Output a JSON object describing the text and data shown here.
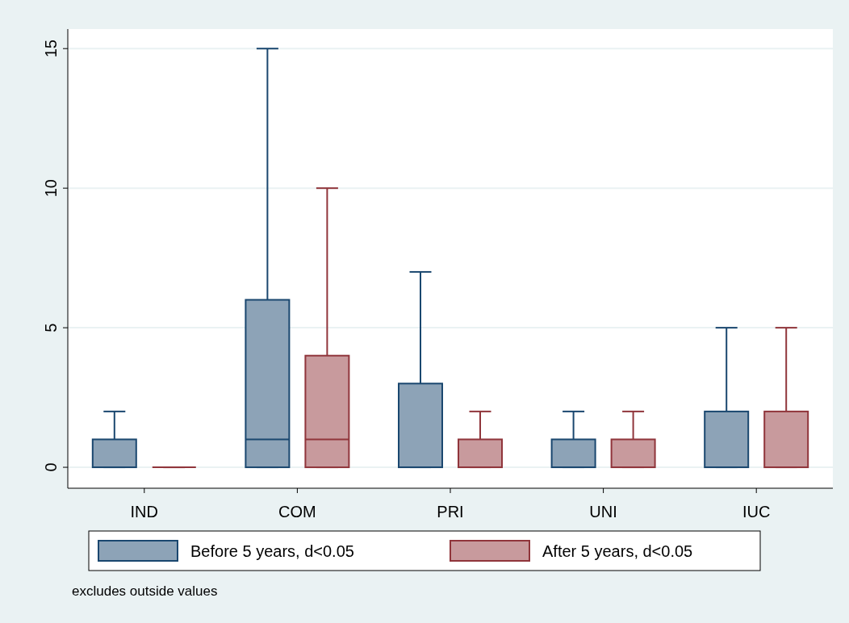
{
  "chart_data": {
    "type": "box",
    "categories": [
      "IND",
      "COM",
      "PRI",
      "UNI",
      "IUC"
    ],
    "series": [
      {
        "name": "Before 5 years, d<0.05",
        "color": "#1a476f",
        "boxes": [
          {
            "low": 0,
            "q1": 0,
            "median": 0,
            "q3": 1,
            "high": 2
          },
          {
            "low": 0,
            "q1": 0,
            "median": 1,
            "q3": 6,
            "high": 15
          },
          {
            "low": 0,
            "q1": 0,
            "median": 0,
            "q3": 3,
            "high": 7
          },
          {
            "low": 0,
            "q1": 0,
            "median": 0,
            "q3": 1,
            "high": 2
          },
          {
            "low": 0,
            "q1": 0,
            "median": 0,
            "q3": 2,
            "high": 5
          }
        ]
      },
      {
        "name": "After 5 years, d<0.05",
        "color": "#90353b",
        "boxes": [
          {
            "low": 0,
            "q1": 0,
            "median": 0,
            "q3": 0,
            "high": 0
          },
          {
            "low": 0,
            "q1": 0,
            "median": 1,
            "q3": 4,
            "high": 10
          },
          {
            "low": 0,
            "q1": 0,
            "median": 0,
            "q3": 1,
            "high": 2
          },
          {
            "low": 0,
            "q1": 0,
            "median": 0,
            "q3": 1,
            "high": 2
          },
          {
            "low": 0,
            "q1": 0,
            "median": 0,
            "q3": 2,
            "high": 5
          }
        ]
      }
    ],
    "ylim": [
      -0.75,
      15.7
    ],
    "yticks": [
      0,
      5,
      10,
      15
    ],
    "grid": "y",
    "legend": "bottom",
    "annotations": [
      "excludes outside values"
    ]
  }
}
